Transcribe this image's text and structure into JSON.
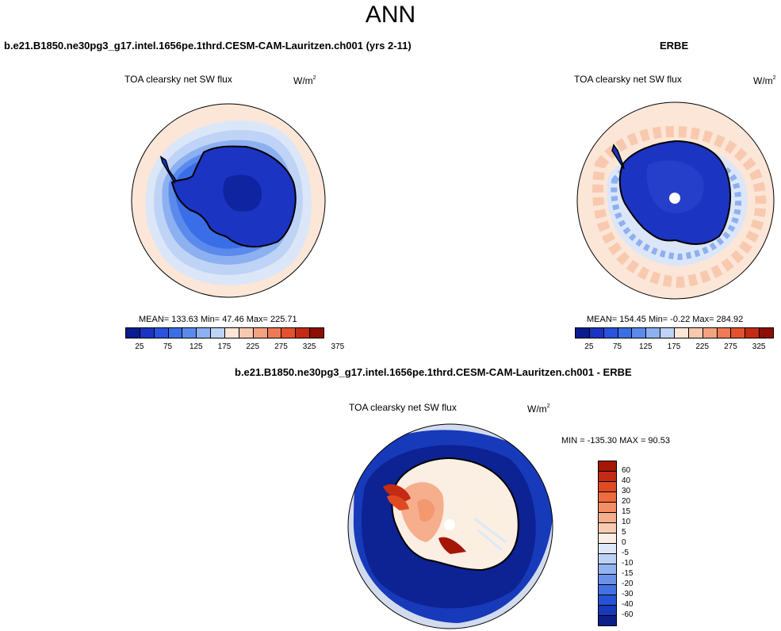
{
  "title": "ANN",
  "panel_left": {
    "case": "b.e21.B1850.ne30pg3_g17.intel.1656pe.1thrd.CESM-CAM-Lauritzen.ch001 (yrs 2-11)",
    "field": "TOA clearsky net SW flux",
    "units": "W/m",
    "units_exp": "2",
    "stats": "MEAN= 133.63  Min=  47.46  Max= 225.71"
  },
  "panel_right": {
    "case": "ERBE",
    "field": "TOA clearsky net SW flux",
    "units": "W/m",
    "units_exp": "2",
    "stats": "MEAN= 154.45  Min=  -0.22  Max= 284.92"
  },
  "panel_diff": {
    "case": "b.e21.B1850.ne30pg3_g17.intel.1656pe.1thrd.CESM-CAM-Lauritzen.ch001 - ERBE",
    "field": "TOA clearsky net SW flux",
    "units": "W/m",
    "units_exp": "2",
    "minmax": "MIN = -135.30 MAX =  90.53"
  },
  "colorbar_abs": {
    "colors": [
      "#0a1b8f",
      "#1c34c2",
      "#2a52dc",
      "#3a6ee6",
      "#5b8aed",
      "#8db0f1",
      "#bfd3f6",
      "#fbe6d8",
      "#f8c9ae",
      "#f4a382",
      "#ee7a56",
      "#e4512f",
      "#c42b15",
      "#8c0e05"
    ],
    "labels": [
      "25",
      "75",
      "125",
      "175",
      "225",
      "275",
      "325",
      "375"
    ]
  },
  "colorbar_diff": {
    "colors": [
      "#a51605",
      "#c42b15",
      "#e04a22",
      "#ed6b3f",
      "#f48e63",
      "#f6ae8c",
      "#f8ccb2",
      "#fbeee2",
      "#dce8f8",
      "#bcd2f5",
      "#93b3f0",
      "#6b91ea",
      "#4472e2",
      "#2752d6",
      "#173aba",
      "#0c1f8c"
    ],
    "labels": [
      "60",
      "40",
      "30",
      "20",
      "15",
      "10",
      "5",
      "0",
      "-5",
      "-10",
      "-15",
      "-20",
      "-30",
      "-40",
      "-60"
    ]
  }
}
